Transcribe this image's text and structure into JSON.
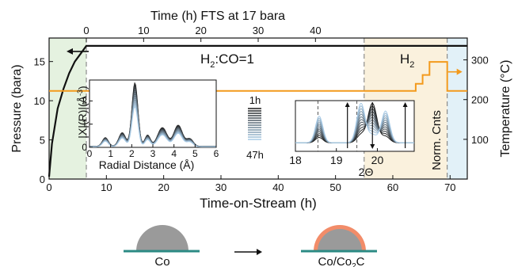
{
  "chart_data": [
    {
      "id": "main",
      "type": "line",
      "top_axis_title": "Time (h) FTS at 17 bara",
      "top_ticks": [
        0,
        10,
        20,
        30,
        40
      ],
      "xlabel": "Time-on-Stream (h)",
      "x_ticks": [
        0,
        10,
        20,
        30,
        40,
        50,
        60,
        70
      ],
      "xlim": [
        0,
        73
      ],
      "ylabel_left": "Pressure (bara)",
      "y_left_ticks": [
        0,
        5,
        10,
        15
      ],
      "ylim_left": [
        0,
        18
      ],
      "ylabel_right": "Temperature (°C)",
      "y_right_ticks": [
        100,
        200,
        300
      ],
      "ylim_right": [
        0,
        355
      ],
      "annotations": {
        "ratio": "H",
        "ratio_sub": "2",
        "ratio_rest": ":CO=1",
        "h2": "H",
        "h2_sub": "2"
      },
      "fts_start_h": 6.5,
      "phase_boundaries_h": [
        55,
        69.5
      ],
      "series": [
        {
          "axis": "left",
          "color": "#111111",
          "points": [
            [
              0,
              0.3
            ],
            [
              0.5,
              4.5
            ],
            [
              1.5,
              9
            ],
            [
              2.5,
              11.5
            ],
            [
              3.5,
              13.5
            ],
            [
              4.5,
              15
            ],
            [
              5.5,
              16
            ],
            [
              6.5,
              17
            ],
            [
              73,
              17
            ]
          ]
        },
        {
          "axis": "right",
          "color": "#f39a1c",
          "points": [
            [
              0,
              222
            ],
            [
              64,
              222
            ],
            [
              64,
              240
            ],
            [
              65.2,
              240
            ],
            [
              65.2,
              262
            ],
            [
              66.4,
              262
            ],
            [
              66.4,
              295
            ],
            [
              69.5,
              295
            ],
            [
              69.5,
              222
            ],
            [
              73,
              222
            ]
          ]
        }
      ]
    },
    {
      "id": "inset-radial",
      "type": "line",
      "xlabel": "Radial Distance (Å)",
      "ylabel": "|X|(R)|(Å",
      "ylabel_sup": "-3",
      "ylabel_end": ")",
      "x_ticks": [
        0,
        1,
        2,
        3,
        4,
        5,
        6
      ],
      "xlim": [
        0,
        6
      ],
      "y_ticks": [
        0,
        1,
        2
      ],
      "ylim": [
        0,
        2.9
      ],
      "time_legend": {
        "start": "1h",
        "end": "47h"
      },
      "peaks": [
        {
          "center": 0.75,
          "width": 0.14,
          "height": 0.35
        },
        {
          "center": 1.55,
          "width": 0.16,
          "height": 0.55
        },
        {
          "center": 2.15,
          "width": 0.14,
          "height": 2.55
        },
        {
          "center": 2.75,
          "width": 0.13,
          "height": 0.45
        },
        {
          "center": 3.45,
          "width": 0.22,
          "height": 0.75
        },
        {
          "center": 4.2,
          "width": 0.2,
          "height": 0.85
        },
        {
          "center": 4.75,
          "width": 0.16,
          "height": 0.3
        }
      ],
      "scale_range": [
        0.68,
        1.07
      ],
      "curve_count": 12
    },
    {
      "id": "inset-xrd",
      "type": "line",
      "xlabel": "2Θ",
      "ylabel": "Norm. Cnts",
      "x_ticks": [
        18,
        19,
        20
      ],
      "xlim": [
        18,
        20.9
      ],
      "dashed_x": [
        18.55,
        19.5
      ],
      "peaks_growing": [
        {
          "center": 18.58,
          "width": 0.09,
          "height": 0.42
        },
        {
          "center": 19.6,
          "width": 0.1,
          "height": 0.62
        },
        {
          "center": 20.2,
          "width": 0.1,
          "height": 0.5
        }
      ],
      "peaks_shrinking": [
        {
          "center": 19.88,
          "width": 0.11,
          "height": 0.62
        }
      ],
      "growth_range": [
        0.2,
        1.0
      ],
      "curve_count": 12
    }
  ],
  "schematic": {
    "before_label": "Co",
    "after_label": "Co/Co",
    "after_label_sub": "2",
    "after_label_end": "C",
    "colors": {
      "particle": "#9a9a9a",
      "shell": "#f28c69",
      "support": "#2c8b84"
    }
  },
  "colors": {
    "pressure": "#111111",
    "temperature": "#f39a1c",
    "zone_activation": "#e5f2e0",
    "zone_h2": "#faf1dd",
    "zone_end": "#e2f1f8",
    "curve_early": "#1b1b1b",
    "curve_late": "#a9cbe6"
  }
}
